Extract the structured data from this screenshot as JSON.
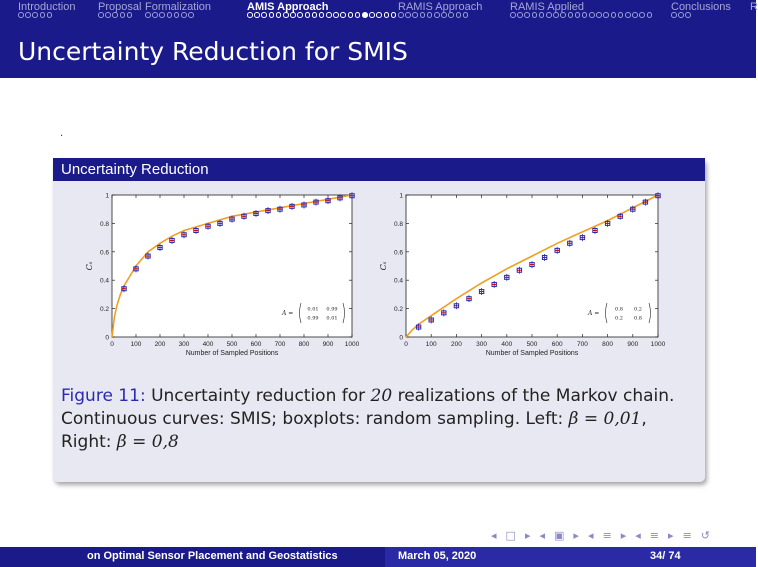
{
  "nav": {
    "sections": [
      {
        "label": "Introduction",
        "dots": 5,
        "filled": -1,
        "active": false
      },
      {
        "label": "Proposal",
        "dots": 5,
        "filled": -1,
        "active": false
      },
      {
        "label": "Formalization",
        "dots": 7,
        "filled": -1,
        "active": false
      },
      {
        "label": "AMIS Approach",
        "dots": 21,
        "filled": 16,
        "active": true
      },
      {
        "label": "RAMIS Approach",
        "dots": 10,
        "filled": -1,
        "active": false
      },
      {
        "label": "RAMIS Applied",
        "dots": 20,
        "filled": -1,
        "active": false
      },
      {
        "label": "Conclusions",
        "dots": 3,
        "filled": -1,
        "active": false
      },
      {
        "label": "R",
        "dots": 0,
        "filled": -1,
        "active": false
      }
    ]
  },
  "frame": {
    "title": "Uncertainty Reduction for SMIS",
    "stray_text": "."
  },
  "block": {
    "title": "Uncertainty Reduction"
  },
  "chart_data": [
    {
      "type": "line",
      "ylabel": "Cₛ",
      "xlabel": "Number of Sampled Positions",
      "xlim": [
        0,
        1000
      ],
      "ylim": [
        0,
        1
      ],
      "xticks": [
        "0",
        "100",
        "200",
        "300",
        "400",
        "500",
        "600",
        "700",
        "800",
        "900",
        "1000"
      ],
      "yticks": [
        "0",
        "0.2",
        "0.4",
        "0.6",
        "0.8",
        "1"
      ],
      "matrix_label": "A =",
      "matrix": [
        [
          "0.01",
          "0.99"
        ],
        [
          "0.99",
          "0.01"
        ]
      ],
      "series": [
        {
          "kind": "line",
          "color": "#f0a020",
          "x": [
            0,
            10,
            20,
            35,
            50,
            75,
            100,
            150,
            200,
            250,
            300,
            400,
            500,
            600,
            700,
            800,
            900,
            1000
          ],
          "y": [
            0,
            0.14,
            0.22,
            0.3,
            0.36,
            0.43,
            0.5,
            0.6,
            0.66,
            0.71,
            0.75,
            0.8,
            0.85,
            0.88,
            0.91,
            0.94,
            0.97,
            1.0
          ]
        },
        {
          "kind": "boxplot",
          "color": "#2a2ab0",
          "median_color": "#cc0000",
          "x": [
            50,
            100,
            150,
            200,
            250,
            300,
            350,
            400,
            450,
            500,
            550,
            600,
            650,
            700,
            750,
            800,
            850,
            900,
            950,
            1000
          ],
          "y": [
            0.34,
            0.48,
            0.57,
            0.63,
            0.68,
            0.72,
            0.75,
            0.78,
            0.8,
            0.83,
            0.85,
            0.87,
            0.89,
            0.9,
            0.92,
            0.93,
            0.95,
            0.96,
            0.98,
            0.995
          ]
        }
      ]
    },
    {
      "type": "line",
      "ylabel": "Cₛ",
      "xlabel": "Number of Sampled Positions",
      "xlim": [
        0,
        1000
      ],
      "ylim": [
        0,
        1
      ],
      "xticks": [
        "0",
        "100",
        "200",
        "300",
        "400",
        "500",
        "600",
        "700",
        "800",
        "900",
        "1000"
      ],
      "yticks": [
        "0",
        "0.2",
        "0.4",
        "0.6",
        "0.8",
        "1"
      ],
      "matrix_label": "A =",
      "matrix": [
        [
          "0.8",
          "0.2"
        ],
        [
          "0.2",
          "0.8"
        ]
      ],
      "series": [
        {
          "kind": "line",
          "color": "#f0a020",
          "x": [
            0,
            10,
            25,
            50,
            100,
            150,
            200,
            300,
            400,
            500,
            600,
            700,
            800,
            900,
            1000
          ],
          "y": [
            0,
            0.02,
            0.05,
            0.09,
            0.15,
            0.21,
            0.27,
            0.38,
            0.48,
            0.57,
            0.66,
            0.74,
            0.82,
            0.91,
            1.0
          ]
        },
        {
          "kind": "boxplot",
          "color": "#2a2ab0",
          "median_color": "#cc0000",
          "x": [
            50,
            100,
            150,
            200,
            250,
            300,
            350,
            400,
            450,
            500,
            550,
            600,
            650,
            700,
            750,
            800,
            850,
            900,
            950,
            1000
          ],
          "y": [
            0.07,
            0.12,
            0.17,
            0.22,
            0.27,
            0.32,
            0.37,
            0.42,
            0.47,
            0.51,
            0.56,
            0.61,
            0.66,
            0.7,
            0.75,
            0.8,
            0.85,
            0.9,
            0.95,
            0.995
          ]
        }
      ]
    }
  ],
  "caption": {
    "label": "Figure 11:",
    "part1": "Uncertainty reduction for",
    "n": "20",
    "part2": "realizations of the Markov chain. Continuous curves: SMIS; boxplots: random sampling. Left:",
    "beta1": "β = 0,01",
    "part3": ", Right:",
    "beta2": "β = 0,8"
  },
  "navsymbols": [
    "◂",
    "□",
    "▸",
    "◂",
    "▣",
    "▸",
    "◂",
    "≡",
    "▸",
    "◂",
    "≡",
    "▸",
    "≡",
    "↺"
  ],
  "footer": {
    "title": "on Optimal Sensor Placement and Geostatistics",
    "date": "March 05, 2020",
    "page": "34/ 74"
  },
  "colors": {
    "theme": "#1a1a8a",
    "accent": "#2a2ab0",
    "block_bg": "#e8e8f2",
    "line": "#f0a020",
    "median": "#cc0000"
  }
}
